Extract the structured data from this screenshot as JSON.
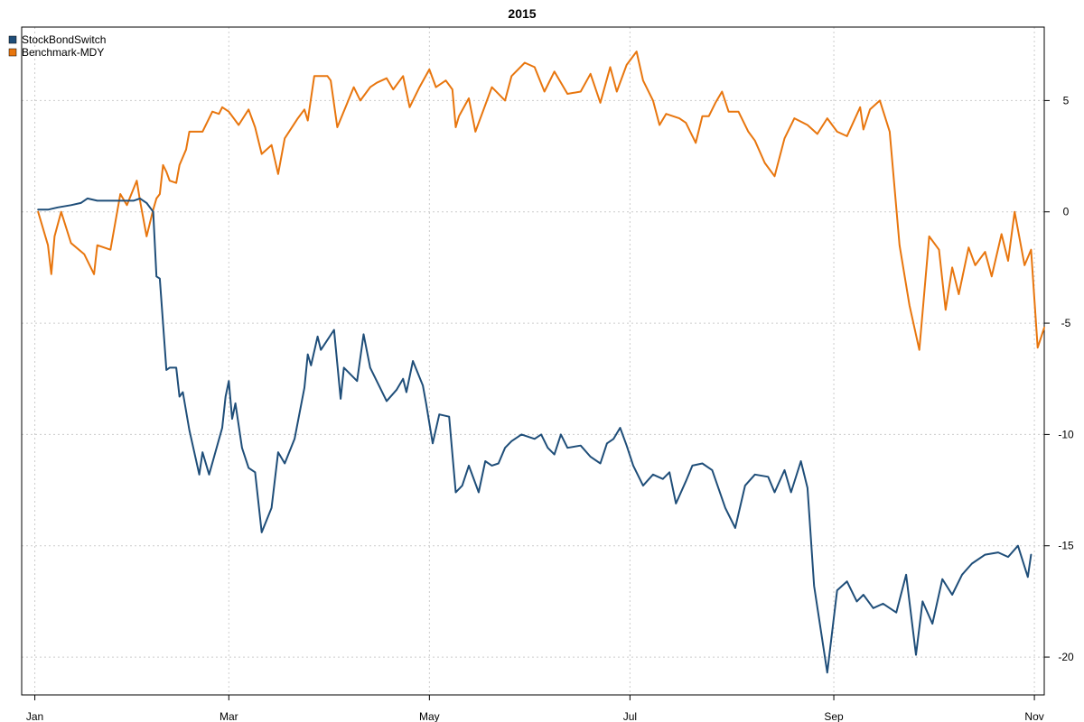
{
  "chart_data": {
    "type": "line",
    "title": "2015",
    "xlabel": "",
    "ylabel": "",
    "x_ticks": [
      "Jan",
      "Mar",
      "May",
      "Jul",
      "Sep",
      "Nov"
    ],
    "x_tick_dates": [
      "2015-01-01",
      "2015-03-01",
      "2015-05-01",
      "2015-07-01",
      "2015-09-01",
      "2015-11-01"
    ],
    "xlim": [
      "2014-12-28",
      "2015-11-04"
    ],
    "y_ticks": [
      5,
      0,
      -5,
      -10,
      -15,
      -20
    ],
    "ylim": [
      -21.7,
      8.3
    ],
    "y_axis_side": "right",
    "grid": true,
    "legend_position": "top-left",
    "series": [
      {
        "name": "StockBondSwitch",
        "color": "#1f4e79",
        "points": [
          [
            "2015-01-02",
            0.1
          ],
          [
            "2015-01-05",
            0.1
          ],
          [
            "2015-01-08",
            0.2
          ],
          [
            "2015-01-12",
            0.3
          ],
          [
            "2015-01-15",
            0.4
          ],
          [
            "2015-01-17",
            0.6
          ],
          [
            "2015-01-20",
            0.5
          ],
          [
            "2015-01-24",
            0.5
          ],
          [
            "2015-01-28",
            0.5
          ],
          [
            "2015-01-31",
            0.5
          ],
          [
            "2015-02-02",
            0.6
          ],
          [
            "2015-02-04",
            0.4
          ],
          [
            "2015-02-06",
            0.0
          ],
          [
            "2015-02-07",
            -2.9
          ],
          [
            "2015-02-08",
            -3.0
          ],
          [
            "2015-02-10",
            -7.1
          ],
          [
            "2015-02-11",
            -7.0
          ],
          [
            "2015-02-13",
            -7.0
          ],
          [
            "2015-02-14",
            -8.3
          ],
          [
            "2015-02-15",
            -8.1
          ],
          [
            "2015-02-17",
            -9.8
          ],
          [
            "2015-02-20",
            -11.8
          ],
          [
            "2015-02-21",
            -10.8
          ],
          [
            "2015-02-23",
            -11.8
          ],
          [
            "2015-02-27",
            -9.7
          ],
          [
            "2015-02-28",
            -8.3
          ],
          [
            "2015-03-01",
            -7.6
          ],
          [
            "2015-03-02",
            -9.3
          ],
          [
            "2015-03-03",
            -8.6
          ],
          [
            "2015-03-05",
            -10.6
          ],
          [
            "2015-03-07",
            -11.5
          ],
          [
            "2015-03-09",
            -11.7
          ],
          [
            "2015-03-11",
            -14.4
          ],
          [
            "2015-03-14",
            -13.3
          ],
          [
            "2015-03-16",
            -10.8
          ],
          [
            "2015-03-18",
            -11.3
          ],
          [
            "2015-03-21",
            -10.2
          ],
          [
            "2015-03-24",
            -7.9
          ],
          [
            "2015-03-25",
            -6.4
          ],
          [
            "2015-03-26",
            -6.9
          ],
          [
            "2015-03-28",
            -5.6
          ],
          [
            "2015-03-29",
            -6.2
          ],
          [
            "2015-04-02",
            -5.3
          ],
          [
            "2015-04-04",
            -8.4
          ],
          [
            "2015-04-05",
            -7.0
          ],
          [
            "2015-04-09",
            -7.6
          ],
          [
            "2015-04-11",
            -5.5
          ],
          [
            "2015-04-13",
            -7.0
          ],
          [
            "2015-04-16",
            -7.9
          ],
          [
            "2015-04-18",
            -8.5
          ],
          [
            "2015-04-21",
            -8.0
          ],
          [
            "2015-04-23",
            -7.5
          ],
          [
            "2015-04-24",
            -8.1
          ],
          [
            "2015-04-26",
            -6.7
          ],
          [
            "2015-04-29",
            -7.8
          ],
          [
            "2015-04-30",
            -8.6
          ],
          [
            "2015-05-02",
            -10.4
          ],
          [
            "2015-05-04",
            -9.1
          ],
          [
            "2015-05-07",
            -9.2
          ],
          [
            "2015-05-09",
            -12.6
          ],
          [
            "2015-05-11",
            -12.3
          ],
          [
            "2015-05-13",
            -11.4
          ],
          [
            "2015-05-16",
            -12.6
          ],
          [
            "2015-05-18",
            -11.2
          ],
          [
            "2015-05-20",
            -11.4
          ],
          [
            "2015-05-22",
            -11.3
          ],
          [
            "2015-05-24",
            -10.6
          ],
          [
            "2015-05-26",
            -10.3
          ],
          [
            "2015-05-29",
            -10.0
          ],
          [
            "2015-06-02",
            -10.2
          ],
          [
            "2015-06-04",
            -10.0
          ],
          [
            "2015-06-06",
            -10.6
          ],
          [
            "2015-06-08",
            -10.9
          ],
          [
            "2015-06-10",
            -10.0
          ],
          [
            "2015-06-12",
            -10.6
          ],
          [
            "2015-06-16",
            -10.5
          ],
          [
            "2015-06-19",
            -11.0
          ],
          [
            "2015-06-22",
            -11.3
          ],
          [
            "2015-06-24",
            -10.4
          ],
          [
            "2015-06-26",
            -10.2
          ],
          [
            "2015-06-28",
            -9.7
          ],
          [
            "2015-06-30",
            -10.5
          ],
          [
            "2015-07-02",
            -11.4
          ],
          [
            "2015-07-05",
            -12.3
          ],
          [
            "2015-07-08",
            -11.8
          ],
          [
            "2015-07-11",
            -12.0
          ],
          [
            "2015-07-13",
            -11.7
          ],
          [
            "2015-07-15",
            -13.1
          ],
          [
            "2015-07-18",
            -12.1
          ],
          [
            "2015-07-20",
            -11.4
          ],
          [
            "2015-07-23",
            -11.3
          ],
          [
            "2015-07-26",
            -11.6
          ],
          [
            "2015-07-30",
            -13.3
          ],
          [
            "2015-08-02",
            -14.2
          ],
          [
            "2015-08-05",
            -12.3
          ],
          [
            "2015-08-08",
            -11.8
          ],
          [
            "2015-08-12",
            -11.9
          ],
          [
            "2015-08-14",
            -12.6
          ],
          [
            "2015-08-17",
            -11.6
          ],
          [
            "2015-08-19",
            -12.6
          ],
          [
            "2015-08-22",
            -11.2
          ],
          [
            "2015-08-24",
            -12.4
          ],
          [
            "2015-08-26",
            -16.8
          ],
          [
            "2015-08-30",
            -20.7
          ],
          [
            "2015-09-02",
            -17.0
          ],
          [
            "2015-09-05",
            -16.6
          ],
          [
            "2015-09-08",
            -17.5
          ],
          [
            "2015-09-10",
            -17.2
          ],
          [
            "2015-09-13",
            -17.8
          ],
          [
            "2015-09-16",
            -17.6
          ],
          [
            "2015-09-20",
            -18.0
          ],
          [
            "2015-09-23",
            -16.3
          ],
          [
            "2015-09-26",
            -19.9
          ],
          [
            "2015-09-28",
            -17.5
          ],
          [
            "2015-10-01",
            -18.5
          ],
          [
            "2015-10-04",
            -16.5
          ],
          [
            "2015-10-07",
            -17.2
          ],
          [
            "2015-10-10",
            -16.3
          ],
          [
            "2015-10-13",
            -15.8
          ],
          [
            "2015-10-17",
            -15.4
          ],
          [
            "2015-10-21",
            -15.3
          ],
          [
            "2015-10-24",
            -15.5
          ],
          [
            "2015-10-27",
            -15.0
          ],
          [
            "2015-10-30",
            -16.4
          ],
          [
            "2015-10-31",
            -15.4
          ]
        ]
      },
      {
        "name": "Benchmark-MDY",
        "color": "#e8760e",
        "points": [
          [
            "2015-01-02",
            0.0
          ],
          [
            "2015-01-05",
            -1.5
          ],
          [
            "2015-01-06",
            -2.8
          ],
          [
            "2015-01-07",
            -1.1
          ],
          [
            "2015-01-09",
            0.0
          ],
          [
            "2015-01-12",
            -1.4
          ],
          [
            "2015-01-16",
            -1.9
          ],
          [
            "2015-01-19",
            -2.8
          ],
          [
            "2015-01-20",
            -1.5
          ],
          [
            "2015-01-24",
            -1.7
          ],
          [
            "2015-01-27",
            0.8
          ],
          [
            "2015-01-29",
            0.3
          ],
          [
            "2015-02-01",
            1.4
          ],
          [
            "2015-02-02",
            0.5
          ],
          [
            "2015-02-04",
            -1.1
          ],
          [
            "2015-02-06",
            0.1
          ],
          [
            "2015-02-07",
            0.6
          ],
          [
            "2015-02-08",
            0.8
          ],
          [
            "2015-02-09",
            2.1
          ],
          [
            "2015-02-10",
            1.8
          ],
          [
            "2015-02-11",
            1.4
          ],
          [
            "2015-02-13",
            1.3
          ],
          [
            "2015-02-14",
            2.1
          ],
          [
            "2015-02-16",
            2.8
          ],
          [
            "2015-02-17",
            3.6
          ],
          [
            "2015-02-21",
            3.6
          ],
          [
            "2015-02-24",
            4.5
          ],
          [
            "2015-02-26",
            4.4
          ],
          [
            "2015-02-27",
            4.7
          ],
          [
            "2015-03-01",
            4.5
          ],
          [
            "2015-03-04",
            3.9
          ],
          [
            "2015-03-07",
            4.6
          ],
          [
            "2015-03-09",
            3.8
          ],
          [
            "2015-03-11",
            2.6
          ],
          [
            "2015-03-14",
            3.0
          ],
          [
            "2015-03-16",
            1.7
          ],
          [
            "2015-03-18",
            3.3
          ],
          [
            "2015-03-22",
            4.2
          ],
          [
            "2015-03-24",
            4.6
          ],
          [
            "2015-03-25",
            4.1
          ],
          [
            "2015-03-27",
            6.1
          ],
          [
            "2015-03-31",
            6.1
          ],
          [
            "2015-04-01",
            5.9
          ],
          [
            "2015-04-03",
            3.8
          ],
          [
            "2015-04-08",
            5.6
          ],
          [
            "2015-04-10",
            5.0
          ],
          [
            "2015-04-13",
            5.6
          ],
          [
            "2015-04-15",
            5.8
          ],
          [
            "2015-04-18",
            6.0
          ],
          [
            "2015-04-20",
            5.5
          ],
          [
            "2015-04-23",
            6.1
          ],
          [
            "2015-04-25",
            4.7
          ],
          [
            "2015-04-28",
            5.6
          ],
          [
            "2015-05-01",
            6.4
          ],
          [
            "2015-05-03",
            5.6
          ],
          [
            "2015-05-06",
            5.9
          ],
          [
            "2015-05-08",
            5.5
          ],
          [
            "2015-05-09",
            3.8
          ],
          [
            "2015-05-10",
            4.3
          ],
          [
            "2015-05-13",
            5.1
          ],
          [
            "2015-05-15",
            3.6
          ],
          [
            "2015-05-20",
            5.6
          ],
          [
            "2015-05-24",
            5.0
          ],
          [
            "2015-05-26",
            6.1
          ],
          [
            "2015-05-30",
            6.7
          ],
          [
            "2015-06-02",
            6.5
          ],
          [
            "2015-06-05",
            5.4
          ],
          [
            "2015-06-08",
            6.3
          ],
          [
            "2015-06-12",
            5.3
          ],
          [
            "2015-06-16",
            5.4
          ],
          [
            "2015-06-19",
            6.2
          ],
          [
            "2015-06-22",
            4.9
          ],
          [
            "2015-06-25",
            6.5
          ],
          [
            "2015-06-27",
            5.4
          ],
          [
            "2015-06-30",
            6.6
          ],
          [
            "2015-07-03",
            7.2
          ],
          [
            "2015-07-05",
            5.9
          ],
          [
            "2015-07-08",
            5.0
          ],
          [
            "2015-07-10",
            3.9
          ],
          [
            "2015-07-12",
            4.4
          ],
          [
            "2015-07-16",
            4.2
          ],
          [
            "2015-07-18",
            4.0
          ],
          [
            "2015-07-21",
            3.1
          ],
          [
            "2015-07-23",
            4.3
          ],
          [
            "2015-07-25",
            4.3
          ],
          [
            "2015-07-27",
            4.9
          ],
          [
            "2015-07-29",
            5.4
          ],
          [
            "2015-07-31",
            4.5
          ],
          [
            "2015-08-03",
            4.5
          ],
          [
            "2015-08-06",
            3.6
          ],
          [
            "2015-08-08",
            3.2
          ],
          [
            "2015-08-11",
            2.2
          ],
          [
            "2015-08-14",
            1.6
          ],
          [
            "2015-08-17",
            3.3
          ],
          [
            "2015-08-20",
            4.2
          ],
          [
            "2015-08-24",
            3.9
          ],
          [
            "2015-08-27",
            3.5
          ],
          [
            "2015-08-30",
            4.2
          ],
          [
            "2015-09-02",
            3.6
          ],
          [
            "2015-09-05",
            3.4
          ],
          [
            "2015-09-09",
            4.7
          ],
          [
            "2015-09-10",
            3.7
          ],
          [
            "2015-09-12",
            4.6
          ],
          [
            "2015-09-15",
            5.0
          ],
          [
            "2015-09-18",
            3.6
          ],
          [
            "2015-09-21",
            -1.5
          ],
          [
            "2015-09-24",
            -4.2
          ],
          [
            "2015-09-27",
            -6.2
          ],
          [
            "2015-09-30",
            -1.1
          ],
          [
            "2015-10-03",
            -1.7
          ],
          [
            "2015-10-05",
            -4.4
          ],
          [
            "2015-10-07",
            -2.5
          ],
          [
            "2015-10-09",
            -3.7
          ],
          [
            "2015-10-12",
            -1.6
          ],
          [
            "2015-10-14",
            -2.4
          ],
          [
            "2015-10-17",
            -1.8
          ],
          [
            "2015-10-19",
            -2.9
          ],
          [
            "2015-10-22",
            -1.0
          ],
          [
            "2015-10-24",
            -2.2
          ],
          [
            "2015-10-26",
            0.0
          ],
          [
            "2015-10-29",
            -2.4
          ],
          [
            "2015-10-31",
            -1.7
          ],
          [
            "2015-11-02",
            -6.1
          ],
          [
            "2015-11-04",
            -5.2
          ]
        ]
      }
    ]
  }
}
